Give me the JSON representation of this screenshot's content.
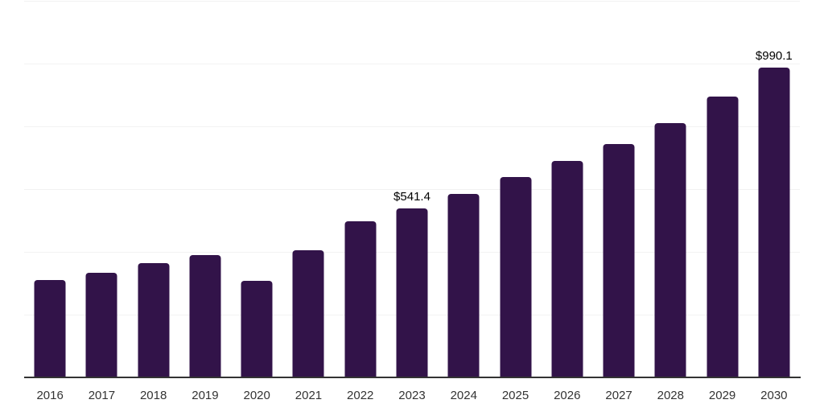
{
  "chart_data": {
    "type": "bar",
    "title": "",
    "xlabel": "",
    "ylabel": "",
    "categories": [
      "2016",
      "2017",
      "2018",
      "2019",
      "2020",
      "2021",
      "2022",
      "2023",
      "2024",
      "2025",
      "2026",
      "2027",
      "2028",
      "2029",
      "2030"
    ],
    "values": [
      312.0,
      337.2,
      366.7,
      393.6,
      309.5,
      409.0,
      501.3,
      541.4,
      588.5,
      641.0,
      693.6,
      747.4,
      814.1,
      897.4,
      990.1
    ],
    "data_labels": [
      null,
      null,
      null,
      null,
      null,
      null,
      null,
      "$541.4",
      null,
      null,
      null,
      null,
      null,
      null,
      "$990.1"
    ],
    "ylim": [
      0,
      1200
    ],
    "gridline_step": 200,
    "grid": "horizontal",
    "legend": "none",
    "y_axis_tick_labels": "none",
    "colors": {
      "bar": "#321349",
      "gridline": "#f2f2f2",
      "axis_line": "#333333",
      "tick_label": "#333333",
      "value_label": "#000000",
      "background": "#ffffff"
    }
  }
}
